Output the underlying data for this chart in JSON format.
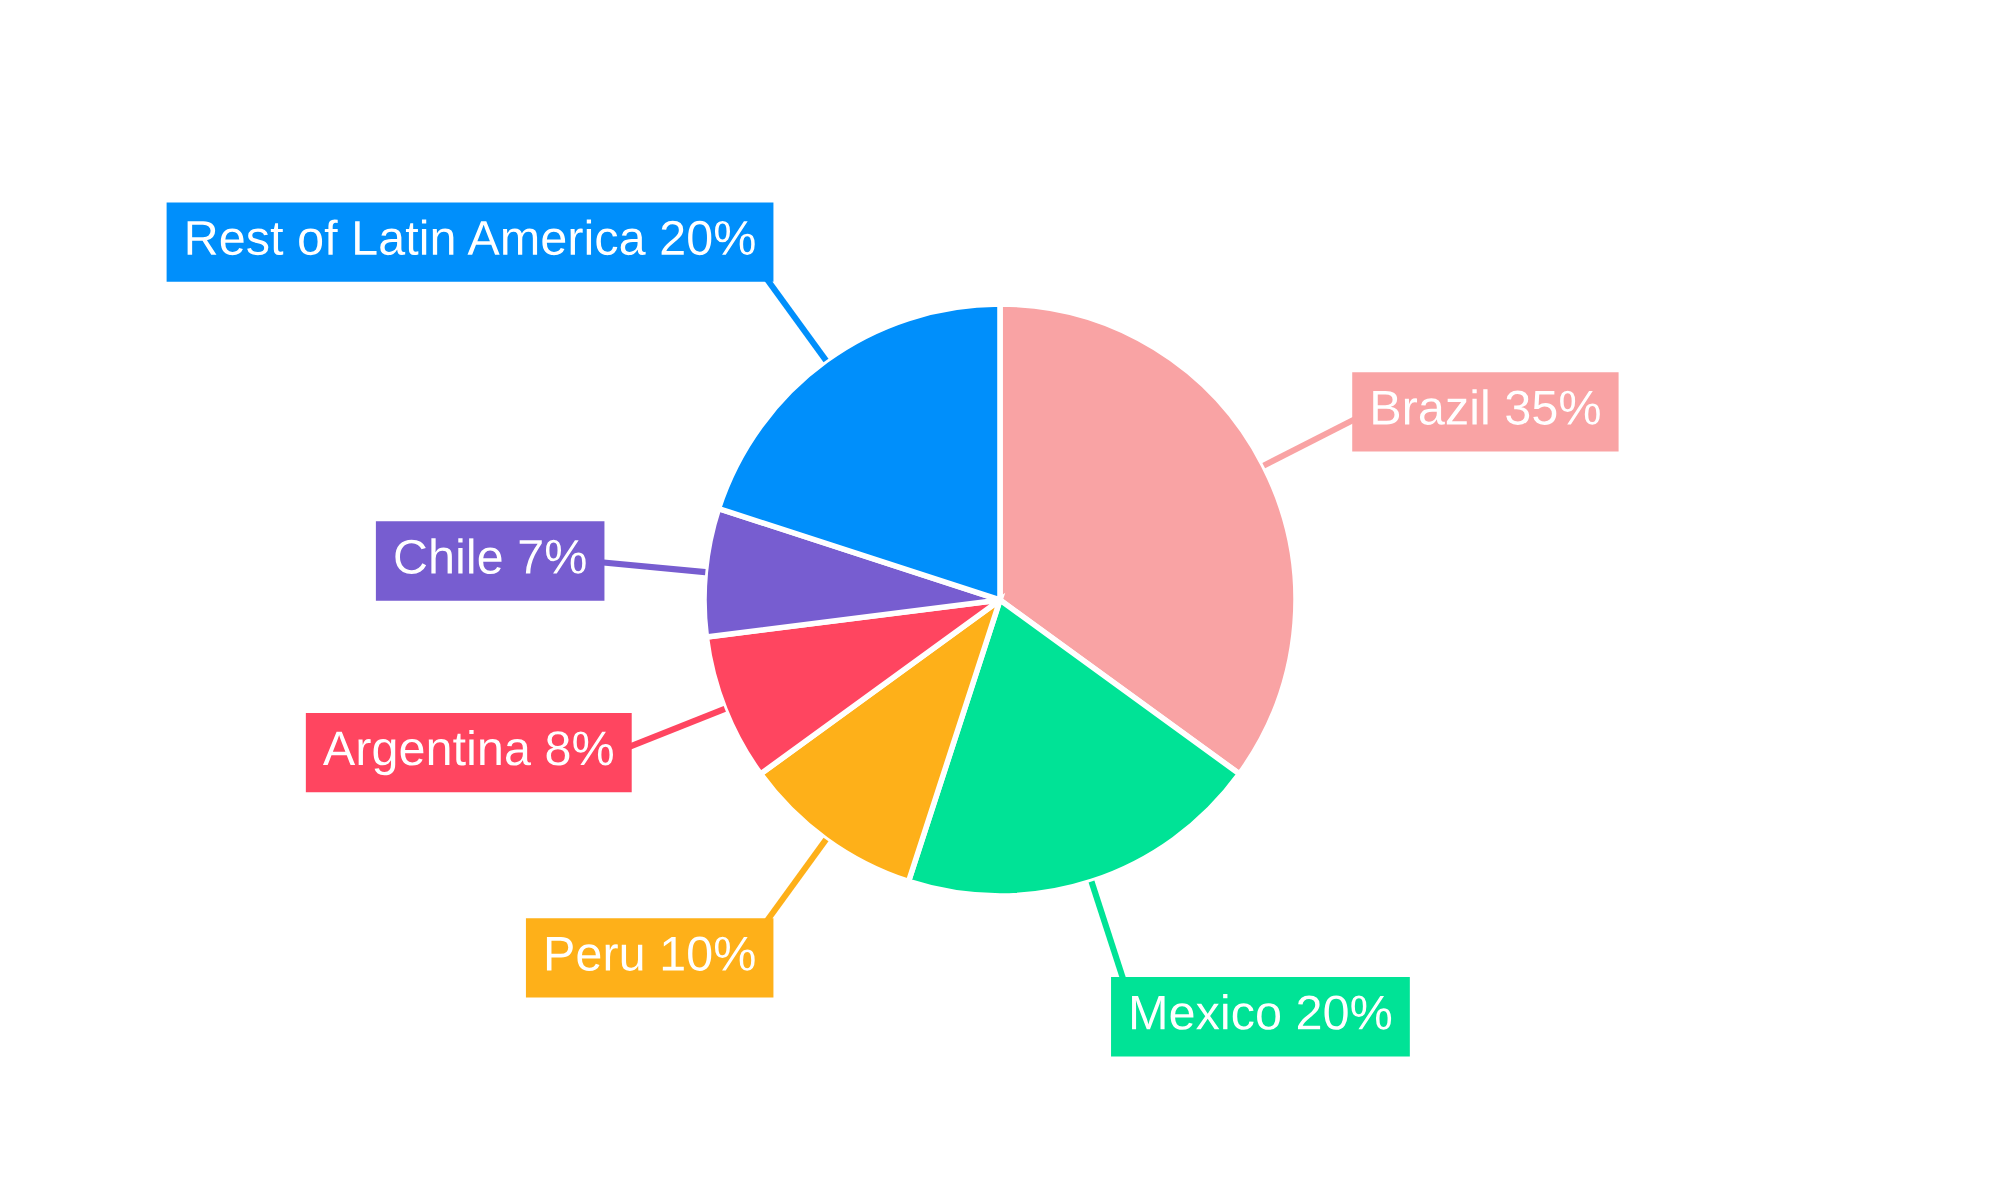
{
  "chart_data": {
    "type": "pie",
    "categories": [
      "Brazil",
      "Mexico",
      "Peru",
      "Argentina",
      "Chile",
      "Rest of Latin America"
    ],
    "values": [
      35,
      20,
      10,
      8,
      7,
      20
    ],
    "colors": [
      "#f9a3a4",
      "#00e396",
      "#feb019",
      "#ff4560",
      "#775dd0",
      "#008ffb"
    ],
    "value_labels": [
      "35%",
      "20%",
      "10%",
      "8%",
      "7%",
      "20%"
    ]
  }
}
